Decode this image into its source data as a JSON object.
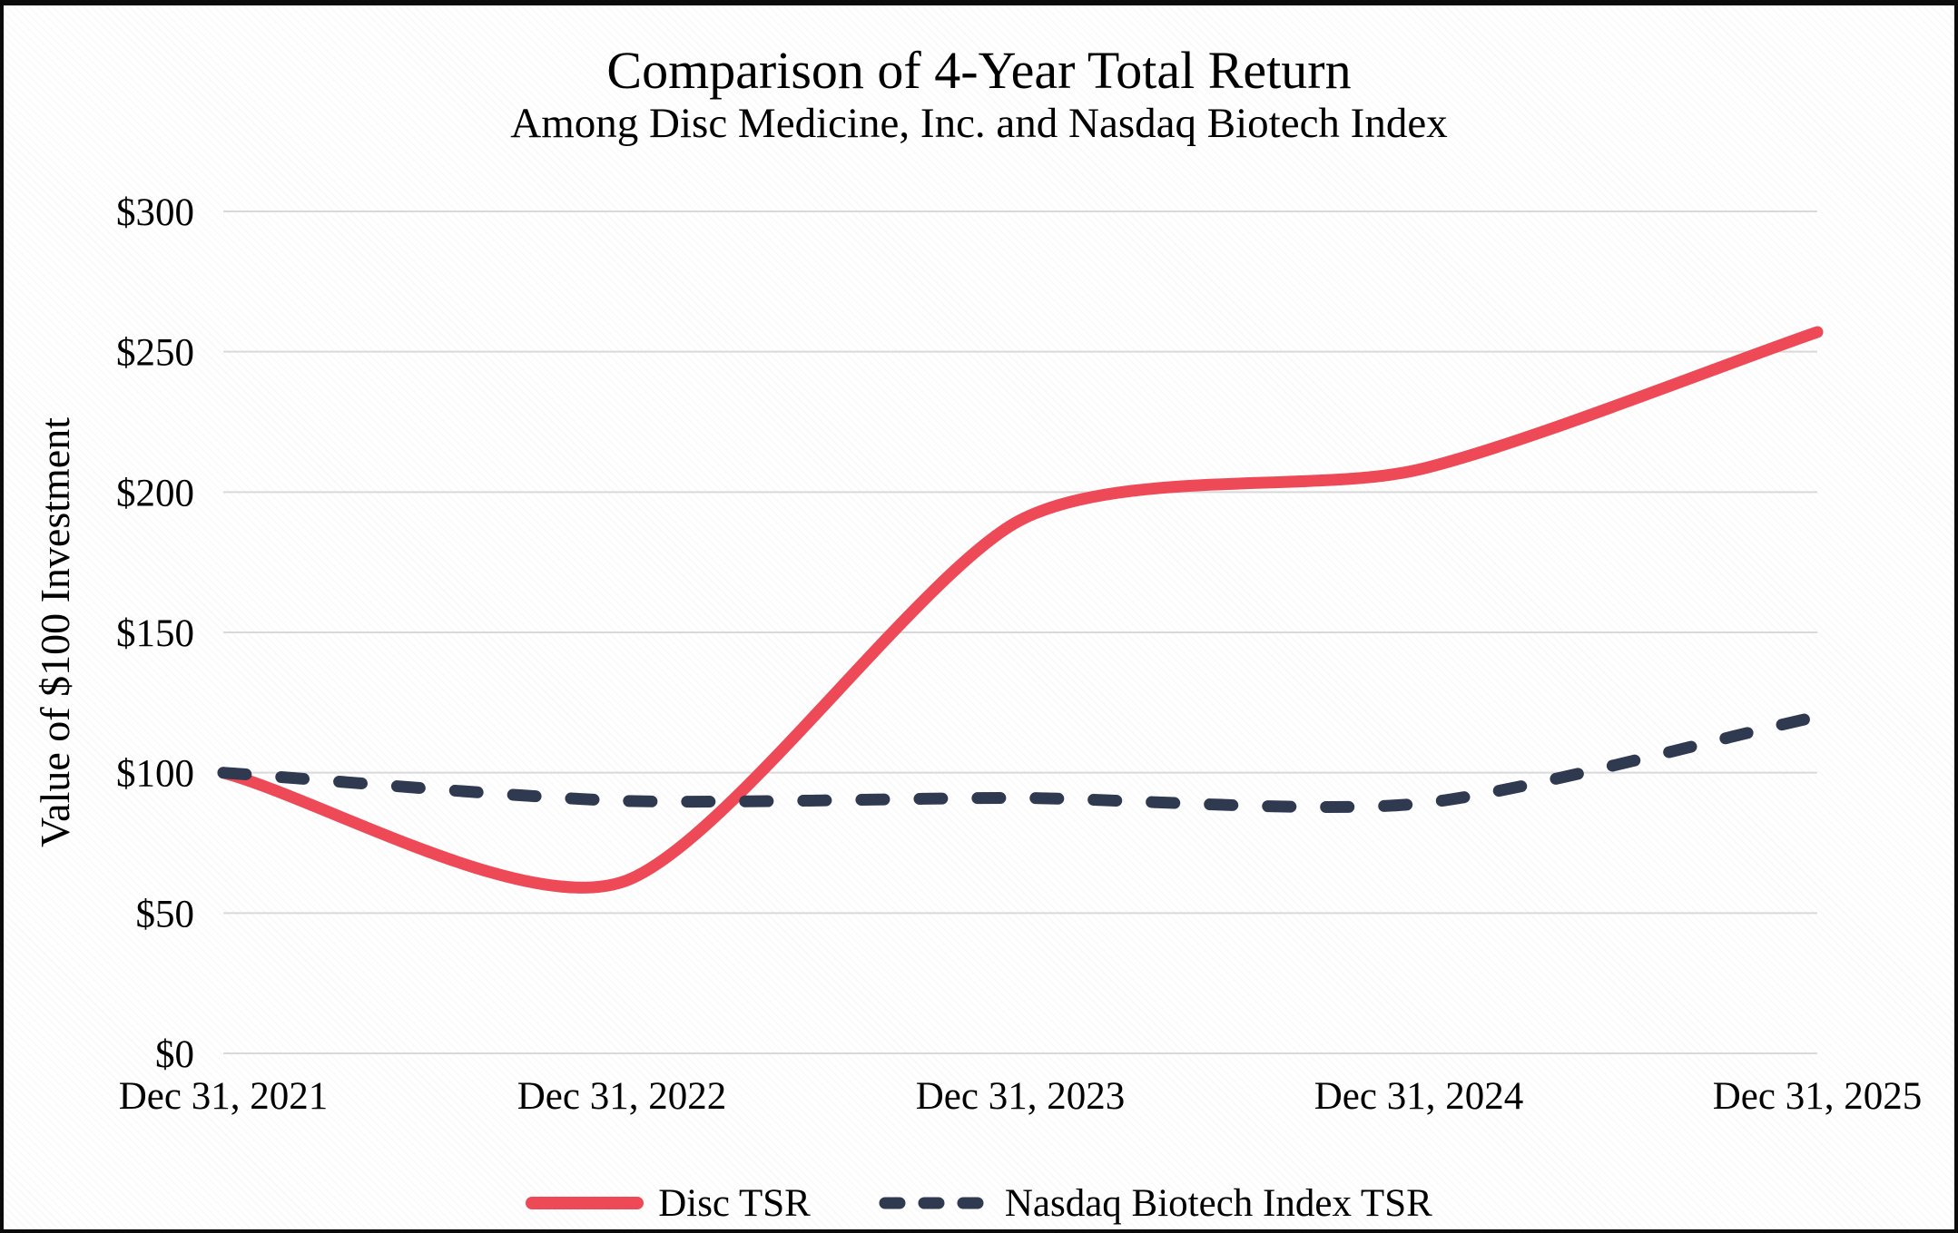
{
  "figure": {
    "title": "Comparison of 4-Year Total Return",
    "subtitle": "Among Disc Medicine, Inc. and Nasdaq Biotech Index"
  },
  "chart_data": {
    "type": "line",
    "title": "Comparison of 4-Year Total Return",
    "subtitle": "Among Disc Medicine, Inc. and Nasdaq Biotech Index",
    "xlabel": "",
    "ylabel": "Value of $100 Investment",
    "categories": [
      "Dec 31, 2021",
      "Dec 31, 2022",
      "Dec 31, 2023",
      "Dec 31, 2024",
      "Dec 31, 2025"
    ],
    "series": [
      {
        "name": "Disc TSR",
        "style": "solid",
        "color": "#EE4956",
        "values": [
          100,
          61,
          190,
          208,
          257
        ]
      },
      {
        "name": "Nasdaq Biotech Index TSR",
        "style": "dashed",
        "color": "#2F3A50",
        "values": [
          100,
          90,
          91,
          89,
          120
        ]
      }
    ],
    "ylim": [
      0,
      300
    ],
    "y_tick_step": 50,
    "y_tick_prefix": "$",
    "y_tick_labels": [
      "$0",
      "$50",
      "$100",
      "$150",
      "$200",
      "$250",
      "$300"
    ],
    "grid": "horizontal",
    "gridline_color": "#D9D9D9",
    "legend_position": "bottom",
    "line_smoothing": true
  }
}
